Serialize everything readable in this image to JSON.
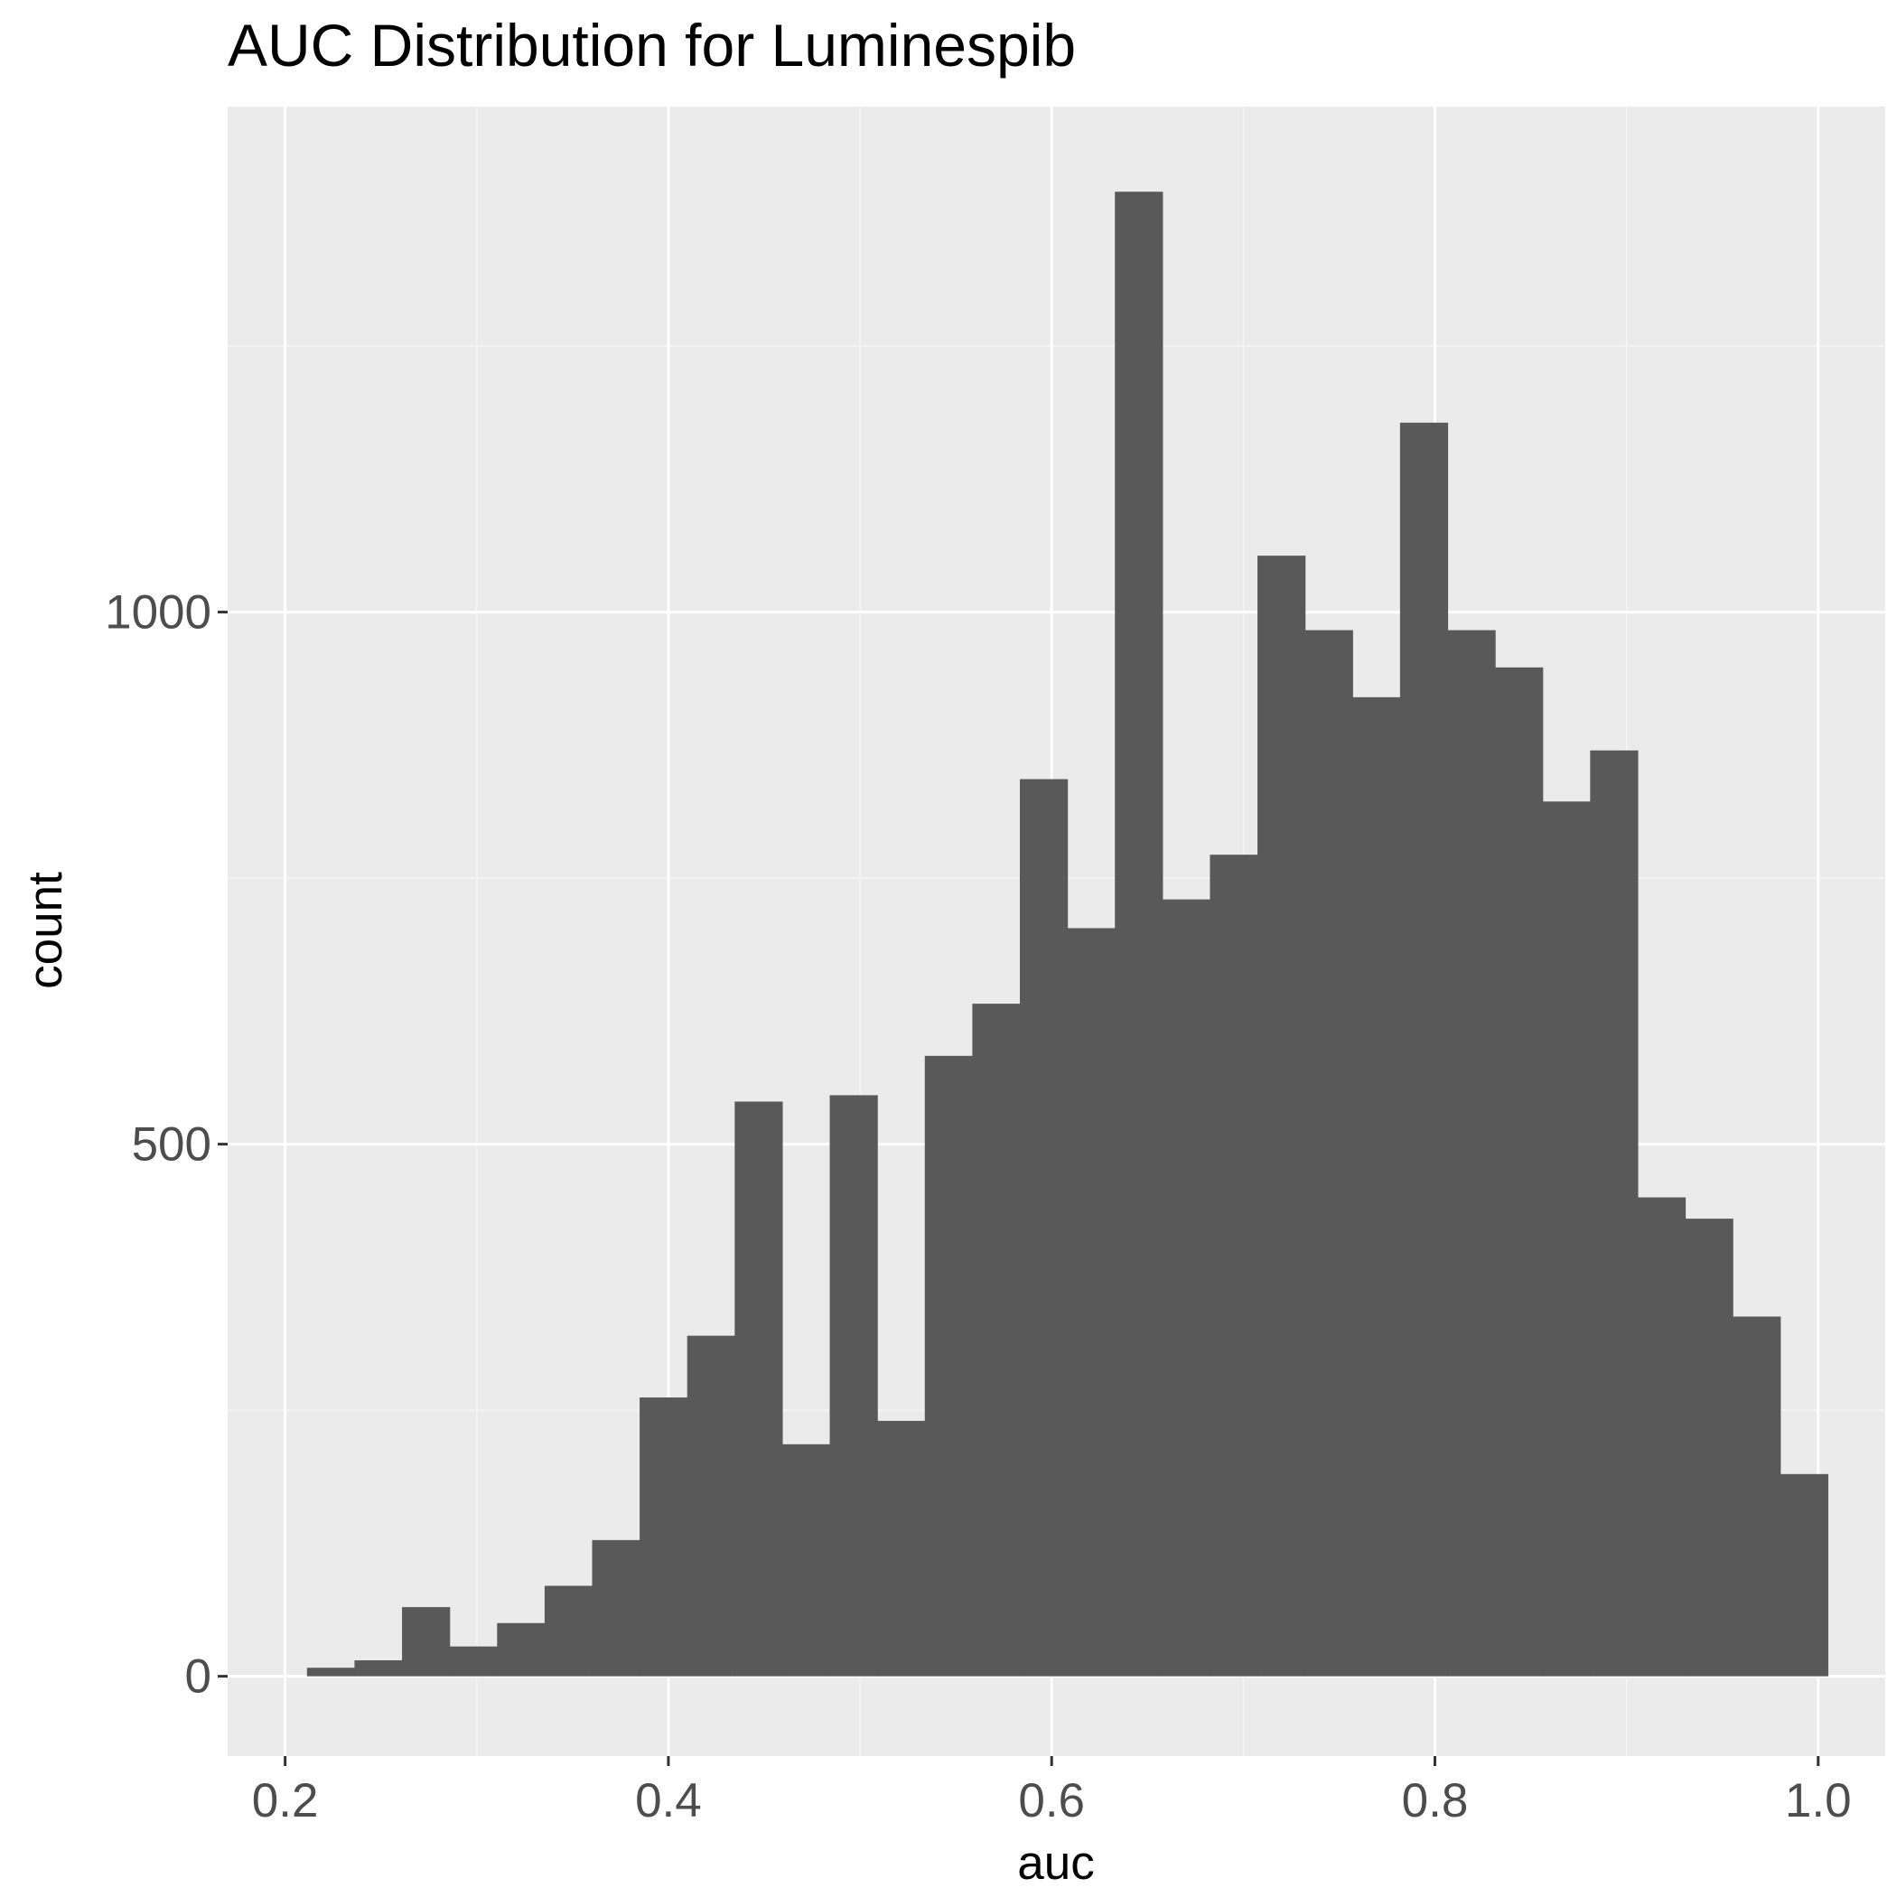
{
  "chart_data": {
    "type": "bar",
    "title": "AUC Distribution for Luminespib",
    "xlabel": "auc",
    "ylabel": "count",
    "xlim": [
      0.17,
      1.035
    ],
    "ylim": [
      -75,
      1475
    ],
    "x_ticks": [
      "0.2",
      "0.4",
      "0.6",
      "0.8",
      "1.0"
    ],
    "x_tick_values": [
      0.2,
      0.4,
      0.6,
      0.8,
      1.0
    ],
    "y_ticks": [
      "0",
      "500",
      "1000"
    ],
    "y_tick_values": [
      0,
      500,
      1000
    ],
    "grid": true,
    "bin_width": 0.0248,
    "bin_starts": [
      0.2114,
      0.2362,
      0.261,
      0.2858,
      0.3106,
      0.3354,
      0.3602,
      0.385,
      0.4098,
      0.4346,
      0.4594,
      0.4842,
      0.509,
      0.5338,
      0.5586,
      0.5834,
      0.6082,
      0.633,
      0.6578,
      0.6826,
      0.7074,
      0.7322,
      0.757,
      0.7818,
      0.8066,
      0.8314,
      0.8562,
      0.881,
      0.9058,
      0.9306,
      0.9554,
      0.9802
    ],
    "values": [
      8,
      15,
      65,
      28,
      50,
      85,
      128,
      262,
      320,
      540,
      218,
      546,
      240,
      583,
      632,
      843,
      703,
      1395,
      730,
      772,
      1053,
      983,
      920,
      1178,
      983,
      948,
      822,
      870,
      450,
      430,
      338,
      190
    ],
    "colors": {
      "bar": "#595959",
      "panel": "#ebebeb",
      "grid_major": "#ffffff",
      "grid_minor": "#f5f5f5"
    }
  }
}
